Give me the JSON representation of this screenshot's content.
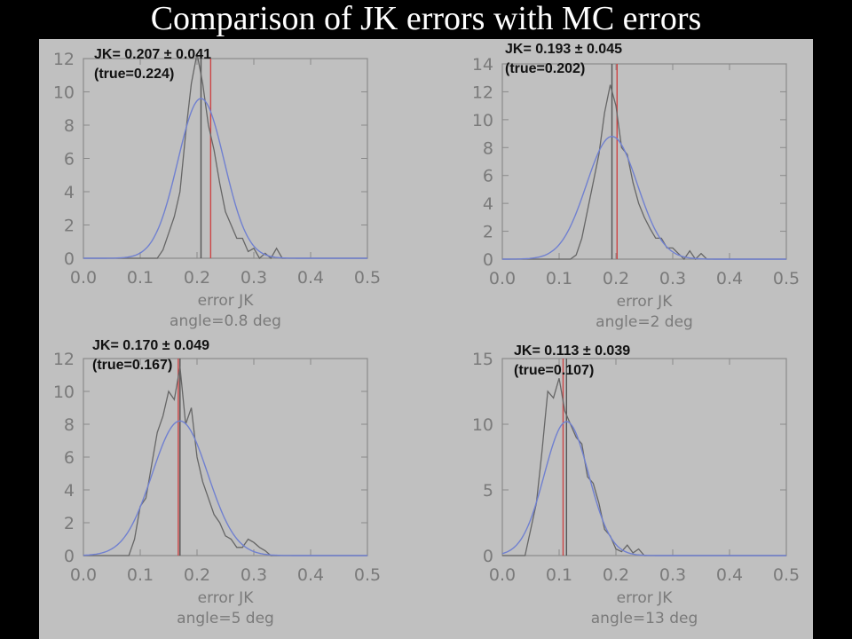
{
  "slide": {
    "title": "Comparison of JK errors with MC errors",
    "background_color": "#000000",
    "figure_background": "#c0c0c0"
  },
  "chart_data": [
    {
      "type": "line",
      "xlabel": "error JK",
      "sublabel": "angle=0.8 deg",
      "xlim": [
        0.0,
        0.5
      ],
      "ylim": [
        0,
        12
      ],
      "xticks": [
        "0.0",
        "0.1",
        "0.2",
        "0.3",
        "0.4",
        "0.5"
      ],
      "yticks": [
        {
          "v": 0,
          "t": "0"
        },
        {
          "v": 2,
          "t": "2"
        },
        {
          "v": 4,
          "t": "4"
        },
        {
          "v": 6,
          "t": "6"
        },
        {
          "v": 8,
          "t": "8"
        },
        {
          "v": 10,
          "t": "10"
        },
        {
          "v": 12,
          "t": "12"
        }
      ],
      "annotation": [
        "JK= 0.207 ± 0.041",
        "(true=0.224)"
      ],
      "vlines": [
        {
          "x": 0.207,
          "color": "#555555"
        },
        {
          "x": 0.224,
          "color": "#cc4444"
        }
      ],
      "series": [
        {
          "color": "#666666",
          "x": [
            0.12,
            0.13,
            0.14,
            0.15,
            0.16,
            0.17,
            0.18,
            0.19,
            0.2,
            0.21,
            0.22,
            0.23,
            0.24,
            0.25,
            0.26,
            0.27,
            0.28,
            0.29,
            0.3,
            0.31,
            0.32,
            0.33,
            0.34,
            0.35
          ],
          "y": [
            0,
            0,
            0.5,
            1.5,
            2.5,
            4,
            7.5,
            10.5,
            12.3,
            10.5,
            8,
            6.5,
            4.5,
            2.8,
            2,
            1.2,
            1.2,
            0.4,
            0.6,
            0,
            0.3,
            0,
            0.6,
            0
          ]
        },
        {
          "color": "#7080d0",
          "gaussian": {
            "mu": 0.207,
            "sigma": 0.041,
            "amp": 9.6
          }
        }
      ]
    },
    {
      "type": "line",
      "xlabel": "error JK",
      "sublabel": "angle=2 deg",
      "xlim": [
        0.0,
        0.5
      ],
      "ylim": [
        0,
        14
      ],
      "xticks": [
        "0.0",
        "0.1",
        "0.2",
        "0.3",
        "0.4",
        "0.5"
      ],
      "yticks": [
        {
          "v": 0,
          "t": "0"
        },
        {
          "v": 2,
          "t": "2"
        },
        {
          "v": 4,
          "t": "4"
        },
        {
          "v": 6,
          "t": "6"
        },
        {
          "v": 8,
          "t": "8"
        },
        {
          "v": 10,
          "t": "10"
        },
        {
          "v": 12,
          "t": "12"
        },
        {
          "v": 14,
          "t": "14"
        }
      ],
      "annotation": [
        "JK= 0.193 ± 0.045",
        "(true=0.202)"
      ],
      "vlines": [
        {
          "x": 0.193,
          "color": "#555555"
        },
        {
          "x": 0.202,
          "color": "#cc4444"
        }
      ],
      "series": [
        {
          "color": "#666666",
          "x": [
            0.12,
            0.13,
            0.14,
            0.15,
            0.16,
            0.17,
            0.18,
            0.19,
            0.2,
            0.21,
            0.22,
            0.23,
            0.24,
            0.25,
            0.26,
            0.27,
            0.28,
            0.29,
            0.3,
            0.31,
            0.32,
            0.33,
            0.34,
            0.35,
            0.36
          ],
          "y": [
            0,
            0.3,
            1.5,
            3.5,
            5.5,
            7.5,
            10.5,
            12.5,
            11,
            8,
            7.5,
            5.5,
            4,
            3,
            2.2,
            1.5,
            1.5,
            0.8,
            0.8,
            0.4,
            0,
            0.6,
            0,
            0.4,
            0
          ]
        },
        {
          "color": "#7080d0",
          "gaussian": {
            "mu": 0.193,
            "sigma": 0.045,
            "amp": 8.8
          }
        }
      ]
    },
    {
      "type": "line",
      "xlabel": "error JK",
      "sublabel": "angle=5 deg",
      "xlim": [
        0.0,
        0.5
      ],
      "ylim": [
        0,
        12
      ],
      "xticks": [
        "0.0",
        "0.1",
        "0.2",
        "0.3",
        "0.4",
        "0.5"
      ],
      "yticks": [
        {
          "v": 0,
          "t": "0"
        },
        {
          "v": 2,
          "t": "2"
        },
        {
          "v": 4,
          "t": "4"
        },
        {
          "v": 6,
          "t": "6"
        },
        {
          "v": 8,
          "t": "8"
        },
        {
          "v": 10,
          "t": "10"
        },
        {
          "v": 12,
          "t": "12"
        }
      ],
      "annotation": [
        "JK= 0.170 ± 0.049",
        "(true=0.167)"
      ],
      "vlines": [
        {
          "x": 0.17,
          "color": "#555555"
        },
        {
          "x": 0.167,
          "color": "#cc4444"
        }
      ],
      "series": [
        {
          "color": "#666666",
          "x": [
            0.08,
            0.09,
            0.1,
            0.11,
            0.12,
            0.13,
            0.14,
            0.15,
            0.16,
            0.17,
            0.18,
            0.19,
            0.2,
            0.21,
            0.22,
            0.23,
            0.24,
            0.25,
            0.26,
            0.27,
            0.28,
            0.29,
            0.3,
            0.31,
            0.32,
            0.33
          ],
          "y": [
            0,
            1,
            3,
            3.5,
            5.5,
            7.5,
            8.5,
            10,
            9.5,
            11.5,
            8,
            9,
            6,
            4.5,
            3.5,
            2.5,
            2,
            1.2,
            1,
            0.5,
            0.5,
            1,
            0.8,
            0.5,
            0.3,
            0
          ]
        },
        {
          "color": "#7080d0",
          "gaussian": {
            "mu": 0.17,
            "sigma": 0.049,
            "amp": 8.2
          }
        }
      ]
    },
    {
      "type": "line",
      "xlabel": "error JK",
      "sublabel": "angle=13 deg",
      "xlim": [
        0.0,
        0.5
      ],
      "ylim": [
        0,
        15
      ],
      "xticks": [
        "0.0",
        "0.1",
        "0.2",
        "0.3",
        "0.4",
        "0.5"
      ],
      "yticks": [
        {
          "v": 0,
          "t": "0"
        },
        {
          "v": 5,
          "t": "5"
        },
        {
          "v": 10,
          "t": "10"
        },
        {
          "v": 15,
          "t": "15"
        }
      ],
      "annotation": [
        "JK= 0.113 ± 0.039",
        "(true=0.107)"
      ],
      "vlines": [
        {
          "x": 0.113,
          "color": "#555555"
        },
        {
          "x": 0.107,
          "color": "#cc4444"
        }
      ],
      "series": [
        {
          "color": "#666666",
          "x": [
            0.04,
            0.05,
            0.06,
            0.07,
            0.08,
            0.09,
            0.1,
            0.11,
            0.12,
            0.13,
            0.14,
            0.15,
            0.16,
            0.17,
            0.18,
            0.19,
            0.2,
            0.21,
            0.22,
            0.23,
            0.24,
            0.25
          ],
          "y": [
            0,
            2,
            4,
            8,
            12.5,
            12,
            13.5,
            11,
            10,
            9,
            8.5,
            6,
            5.5,
            4,
            2,
            1.5,
            0.5,
            0.3,
            0.8,
            0.2,
            0.5,
            0
          ]
        },
        {
          "color": "#7080d0",
          "gaussian": {
            "mu": 0.113,
            "sigma": 0.039,
            "amp": 10.2
          }
        }
      ]
    }
  ]
}
